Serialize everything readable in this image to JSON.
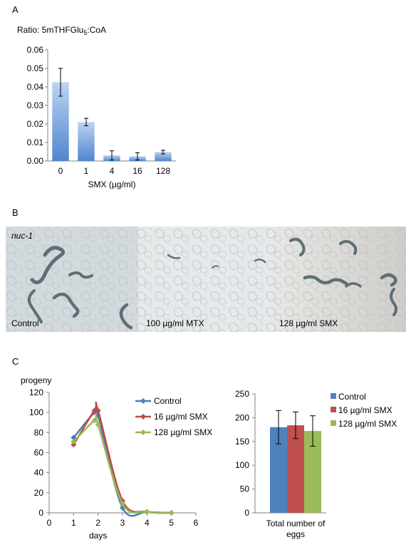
{
  "panels": {
    "a": "A",
    "b": "B",
    "c": "C"
  },
  "chart_data": [
    {
      "type": "bar",
      "title": "Ratio: 5mTHFGlu5:CoA",
      "xlabel": "SMX (µg/ml)",
      "ylabel": "",
      "categories": [
        "0",
        "1",
        "4",
        "16",
        "128"
      ],
      "values": [
        0.0425,
        0.021,
        0.003,
        0.0025,
        0.0048
      ],
      "errors": [
        0.0075,
        0.002,
        0.0025,
        0.002,
        0.001
      ],
      "ylim": [
        0,
        0.06
      ],
      "yticks": [
        "0.00",
        "0.01",
        "0.02",
        "0.03",
        "0.04",
        "0.05",
        "0.06"
      ],
      "color": "#4f86cf"
    },
    {
      "type": "line",
      "title": "",
      "ylabel": "progeny",
      "xlabel": "days",
      "xlim": [
        0,
        6
      ],
      "ylim": [
        0,
        120
      ],
      "xticks": [
        "0",
        "1",
        "2",
        "3",
        "4",
        "5",
        "6"
      ],
      "yticks": [
        "0",
        "20",
        "40",
        "60",
        "80",
        "100",
        "120"
      ],
      "x": [
        1,
        1.85,
        2,
        3,
        4,
        5
      ],
      "series": [
        {
          "name": "Control",
          "color": "#4a7ebb",
          "values": [
            75,
            100,
            97,
            5,
            1,
            0
          ]
        },
        {
          "name": "16 µg/ml SMX",
          "color": "#be4b48",
          "values": [
            68,
            102,
            102,
            12,
            1,
            0
          ]
        },
        {
          "name": "128 µg/ml SMX",
          "color": "#98b954",
          "values": [
            71,
            92,
            88,
            9,
            1,
            0
          ]
        }
      ],
      "legend": "right"
    },
    {
      "type": "bar",
      "title": "",
      "xlabel": "",
      "categories": [
        "Total number of eggs"
      ],
      "ylim": [
        0,
        250
      ],
      "yticks": [
        "0",
        "50",
        "100",
        "150",
        "200",
        "250"
      ],
      "series": [
        {
          "name": "Control",
          "color": "#4f81bd",
          "values": [
            180
          ],
          "errors": [
            35
          ]
        },
        {
          "name": "16 µg/ml SMX",
          "color": "#c0504d",
          "values": [
            184
          ],
          "errors": [
            28
          ]
        },
        {
          "name": "128 µg/ml SMX",
          "color": "#9bbb59",
          "values": [
            172
          ],
          "errors": [
            32
          ]
        }
      ],
      "legend": "right"
    }
  ],
  "photo": {
    "strain": "nuc-1",
    "labels": [
      "Control",
      "100 µg/ml MTX",
      "128 µg/ml SMX"
    ]
  }
}
